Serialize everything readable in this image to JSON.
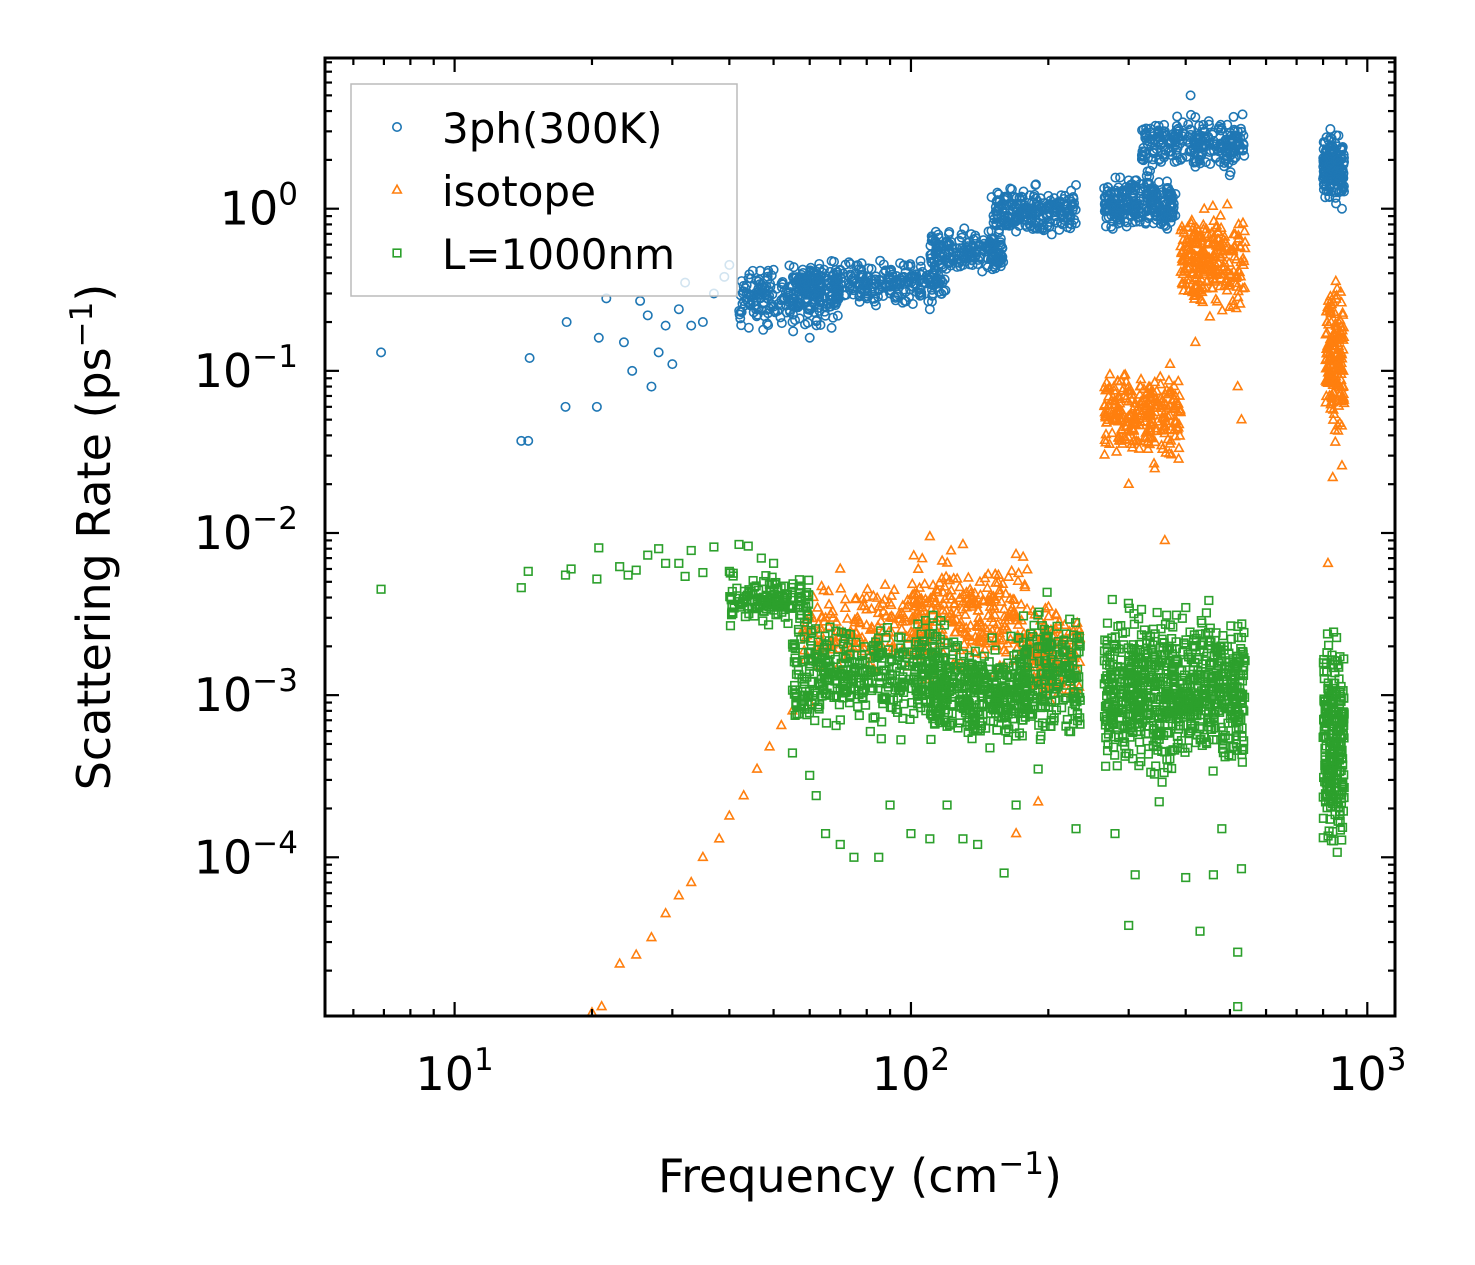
{
  "chart_data": {
    "type": "scatter",
    "title": "",
    "xlabel": "Frequency (cm",
    "xlabel_sup": "−1",
    "xlabel_tail": ")",
    "ylabel": "Scattering Rate (ps",
    "ylabel_sup": "−1",
    "ylabel_tail": ")",
    "xscale": "log",
    "yscale": "log",
    "xlim": [
      5.2,
      1150
    ],
    "ylim": [
      1.05e-05,
      8.5
    ],
    "xticks": [
      {
        "value": 10,
        "base": "10",
        "exp": "1"
      },
      {
        "value": 100,
        "base": "10",
        "exp": "2"
      },
      {
        "value": 1000,
        "base": "10",
        "exp": "3"
      }
    ],
    "yticks": [
      {
        "value": 1,
        "base": "10",
        "exp": "0"
      },
      {
        "value": 0.1,
        "base": "10",
        "exp": "−1"
      },
      {
        "value": 0.01,
        "base": "10",
        "exp": "−2"
      },
      {
        "value": 0.001,
        "base": "10",
        "exp": "−3"
      },
      {
        "value": 0.0001,
        "base": "10",
        "exp": "−4"
      }
    ],
    "legend_position": "top-left",
    "series": [
      {
        "name": "3ph(300K)",
        "marker": "circle",
        "color": "#1f77b4",
        "points": [
          [
            6.9,
            0.13
          ],
          [
            14,
            0.037
          ],
          [
            14.5,
            0.037
          ],
          [
            14.6,
            0.12
          ],
          [
            17.5,
            0.06
          ],
          [
            17.6,
            0.2
          ],
          [
            20.5,
            0.06
          ],
          [
            20.7,
            0.16
          ],
          [
            21.5,
            0.28
          ],
          [
            23.5,
            0.15
          ],
          [
            24.5,
            0.1
          ],
          [
            25.5,
            0.27
          ],
          [
            26.5,
            0.22
          ],
          [
            27,
            0.08
          ],
          [
            28,
            0.13
          ],
          [
            29,
            0.19
          ],
          [
            30,
            0.11
          ],
          [
            31,
            0.24
          ],
          [
            32,
            0.35
          ],
          [
            33,
            0.19
          ],
          [
            35,
            0.2
          ],
          [
            37,
            0.3
          ],
          [
            39,
            0.38
          ],
          [
            40,
            0.45
          ],
          [
            44,
            0.3
          ],
          [
            47,
            0.32
          ],
          [
            50,
            0.42
          ],
          [
            55,
            0.2
          ],
          [
            60,
            0.16
          ],
          [
            65,
            0.25
          ],
          [
            70,
            0.42
          ],
          [
            80,
            0.38
          ],
          [
            90,
            0.33
          ],
          [
            100,
            0.38
          ],
          [
            110,
            0.24
          ],
          [
            130,
            0.55
          ],
          [
            150,
            0.6
          ],
          [
            170,
            0.9
          ],
          [
            185,
            0.75
          ],
          [
            200,
            1.2
          ],
          [
            230,
            1.4
          ],
          [
            270,
            1.2
          ],
          [
            300,
            1.0
          ],
          [
            330,
            1.7
          ],
          [
            360,
            3.0
          ],
          [
            410,
            5.0
          ],
          [
            450,
            3.3
          ],
          [
            480,
            2.5
          ],
          [
            520,
            3.0
          ],
          [
            830,
            3.1
          ],
          [
            860,
            2.0
          ],
          [
            880,
            1.0
          ]
        ],
        "clusters": [
          {
            "x": [
              42,
              70
            ],
            "y": [
              0.16,
              0.5
            ],
            "n": 240
          },
          {
            "x": [
              55,
              120
            ],
            "y": [
              0.24,
              0.52
            ],
            "n": 300
          },
          {
            "x": [
              110,
              160
            ],
            "y": [
              0.35,
              0.8
            ],
            "n": 180
          },
          {
            "x": [
              150,
              230
            ],
            "y": [
              0.6,
              1.5
            ],
            "n": 220
          },
          {
            "x": [
              265,
              380
            ],
            "y": [
              0.65,
              1.8
            ],
            "n": 260
          },
          {
            "x": [
              320,
              540
            ],
            "y": [
              1.5,
              4.2
            ],
            "n": 260
          },
          {
            "x": [
              800,
              890
            ],
            "y": [
              1.0,
              3.2
            ],
            "n": 180
          }
        ]
      },
      {
        "name": "isotope",
        "marker": "triangle",
        "color": "#ff7f0e",
        "points": [
          [
            20,
            1.1e-05
          ],
          [
            21,
            1.2e-05
          ],
          [
            23,
            2.2e-05
          ],
          [
            25,
            2.5e-05
          ],
          [
            27,
            3.2e-05
          ],
          [
            29,
            4.5e-05
          ],
          [
            31,
            5.8e-05
          ],
          [
            33,
            7e-05
          ],
          [
            35,
            0.0001
          ],
          [
            38,
            0.00013
          ],
          [
            40,
            0.00018
          ],
          [
            43,
            0.00024
          ],
          [
            46,
            0.00035
          ],
          [
            49,
            0.00048
          ],
          [
            52,
            0.00065
          ],
          [
            55,
            0.0008
          ],
          [
            60,
            0.0009
          ],
          [
            65,
            0.003
          ],
          [
            70,
            0.006
          ],
          [
            80,
            0.004
          ],
          [
            90,
            0.003
          ],
          [
            110,
            0.0095
          ],
          [
            130,
            0.0085
          ],
          [
            170,
            0.00014
          ],
          [
            190,
            0.00022
          ],
          [
            300,
            0.02
          ],
          [
            360,
            0.009
          ],
          [
            420,
            0.15
          ],
          [
            520,
            0.08
          ],
          [
            530,
            0.05
          ],
          [
            820,
            0.0065
          ],
          [
            840,
            0.022
          ],
          [
            880,
            0.026
          ]
        ],
        "clusters": [
          {
            "x": [
              58,
              110
            ],
            "y": [
              0.0012,
              0.006
            ],
            "n": 180
          },
          {
            "x": [
              100,
              180
            ],
            "y": [
              0.001,
              0.009
            ],
            "n": 260
          },
          {
            "x": [
              180,
              235
            ],
            "y": [
              0.0007,
              0.0045
            ],
            "n": 140
          },
          {
            "x": [
              265,
              390
            ],
            "y": [
              0.022,
              0.13
            ],
            "n": 260
          },
          {
            "x": [
              390,
              540
            ],
            "y": [
              0.18,
              1.2
            ],
            "n": 260
          },
          {
            "x": [
              810,
              890
            ],
            "y": [
              0.03,
              0.5
            ],
            "n": 180
          }
        ]
      },
      {
        "name": "L=1000nm",
        "marker": "square",
        "color": "#2ca02c",
        "points": [
          [
            6.9,
            0.0045
          ],
          [
            14,
            0.0046
          ],
          [
            14.5,
            0.0058
          ],
          [
            17.5,
            0.0055
          ],
          [
            18,
            0.006
          ],
          [
            20.5,
            0.0052
          ],
          [
            20.7,
            0.0081
          ],
          [
            23,
            0.0062
          ],
          [
            24,
            0.0055
          ],
          [
            25,
            0.0059
          ],
          [
            26.5,
            0.0073
          ],
          [
            28,
            0.008
          ],
          [
            29,
            0.0065
          ],
          [
            31,
            0.0065
          ],
          [
            32,
            0.0054
          ],
          [
            33,
            0.0078
          ],
          [
            35,
            0.0057
          ],
          [
            37,
            0.0082
          ],
          [
            40,
            0.0058
          ],
          [
            42,
            0.0085
          ],
          [
            44,
            0.0083
          ],
          [
            47,
            0.007
          ],
          [
            50,
            0.0065
          ],
          [
            55,
            0.00044
          ],
          [
            60,
            0.00032
          ],
          [
            62,
            0.00024
          ],
          [
            65,
            0.00014
          ],
          [
            70,
            0.00012
          ],
          [
            75,
            0.0001
          ],
          [
            85,
            0.0001
          ],
          [
            90,
            0.00021
          ],
          [
            100,
            0.00014
          ],
          [
            110,
            0.00013
          ],
          [
            120,
            0.00021
          ],
          [
            130,
            0.00013
          ],
          [
            140,
            0.00012
          ],
          [
            160,
            8e-05
          ],
          [
            170,
            0.00021
          ],
          [
            190,
            0.00035
          ],
          [
            230,
            0.00015
          ],
          [
            280,
            0.00014
          ],
          [
            300,
            3.8e-05
          ],
          [
            310,
            7.8e-05
          ],
          [
            350,
            0.00022
          ],
          [
            400,
            7.5e-05
          ],
          [
            430,
            3.5e-05
          ],
          [
            460,
            7.8e-05
          ],
          [
            480,
            0.00015
          ],
          [
            520,
            2.6e-05
          ],
          [
            520,
            1.2e-05
          ],
          [
            530,
            8.5e-05
          ]
        ],
        "clusters": [
          {
            "x": [
              40,
              60
            ],
            "y": [
              0.0025,
              0.006
            ],
            "n": 150
          },
          {
            "x": [
              55,
              120
            ],
            "y": [
              0.0005,
              0.0035
            ],
            "n": 420
          },
          {
            "x": [
              110,
              180
            ],
            "y": [
              0.0004,
              0.0028
            ],
            "n": 360
          },
          {
            "x": [
              170,
              235
            ],
            "y": [
              0.0004,
              0.0045
            ],
            "n": 220
          },
          {
            "x": [
              265,
              540
            ],
            "y": [
              0.00025,
              0.0045
            ],
            "n": 820
          },
          {
            "x": [
              800,
              890
            ],
            "y": [
              7e-05,
              0.004
            ],
            "n": 260
          }
        ]
      }
    ]
  }
}
